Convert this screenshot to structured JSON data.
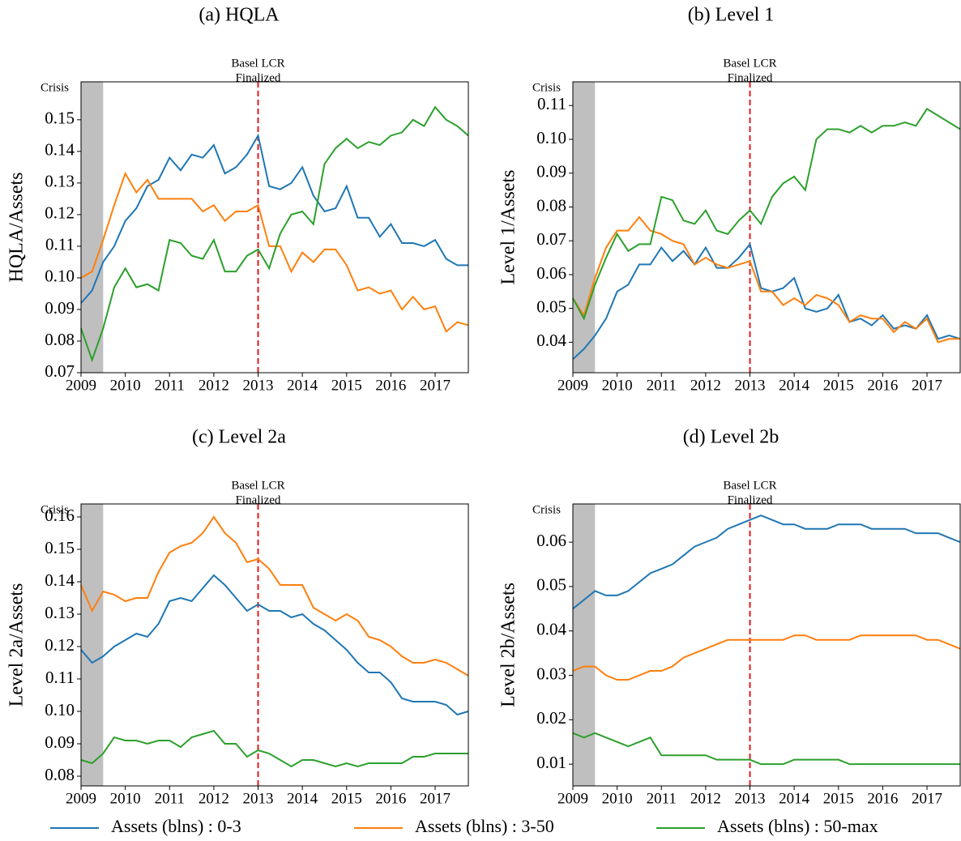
{
  "chart_data": [
    {
      "type": "line",
      "title": "(a) HQLA",
      "ylabel": "HQLA/Assets",
      "x": [
        2009,
        2009.25,
        2009.5,
        2009.75,
        2010,
        2010.25,
        2010.5,
        2010.75,
        2011,
        2011.25,
        2011.5,
        2011.75,
        2012,
        2012.25,
        2012.5,
        2012.75,
        2013,
        2013.25,
        2013.5,
        2013.75,
        2014,
        2014.25,
        2014.5,
        2014.75,
        2015,
        2015.25,
        2015.5,
        2015.75,
        2016,
        2016.25,
        2016.5,
        2016.75,
        2017,
        2017.25,
        2017.5,
        2017.75
      ],
      "xlim": [
        2009,
        2017.75
      ],
      "xticks": [
        2009,
        2010,
        2011,
        2012,
        2013,
        2014,
        2015,
        2016,
        2017
      ],
      "ylim": [
        0.07,
        0.162
      ],
      "yticks": [
        0.07,
        0.08,
        0.09,
        {
          "value": 0.1,
          "label": "0.10"
        },
        0.11,
        0.12,
        0.13,
        0.14,
        0.15
      ],
      "crisis_label": "Crisis",
      "crisis_span": [
        2009,
        2009.5
      ],
      "event_label": [
        "Basel LCR",
        "Finalized"
      ],
      "event_x": 2013,
      "series": [
        {
          "name": "Assets (blns) : 0-3",
          "color": "#1f77b4",
          "values": [
            0.092,
            0.096,
            0.105,
            0.11,
            0.118,
            0.122,
            0.129,
            0.131,
            0.138,
            0.134,
            0.139,
            0.138,
            0.142,
            0.133,
            0.135,
            0.139,
            0.145,
            0.129,
            0.128,
            0.13,
            0.135,
            0.126,
            0.121,
            0.122,
            0.129,
            0.119,
            0.119,
            0.113,
            0.117,
            0.111,
            0.111,
            0.11,
            0.112,
            0.106,
            0.104,
            0.104
          ]
        },
        {
          "name": "Assets (blns) : 3-50",
          "color": "#ff7f0e",
          "values": [
            0.1,
            0.102,
            0.112,
            0.123,
            0.133,
            0.127,
            0.131,
            0.125,
            0.125,
            0.125,
            0.125,
            0.121,
            0.123,
            0.118,
            0.121,
            0.121,
            0.123,
            0.11,
            0.11,
            0.102,
            0.108,
            0.105,
            0.109,
            0.109,
            0.104,
            0.096,
            0.097,
            0.095,
            0.096,
            0.09,
            0.094,
            0.09,
            0.091,
            0.083,
            0.086,
            0.085
          ]
        },
        {
          "name": "Assets (blns) : 50-max",
          "color": "#2ca02c",
          "values": [
            0.084,
            0.074,
            0.084,
            0.097,
            0.103,
            0.097,
            0.098,
            0.096,
            0.112,
            0.111,
            0.107,
            0.106,
            0.112,
            0.102,
            0.102,
            0.107,
            0.109,
            0.103,
            0.114,
            0.12,
            0.121,
            0.117,
            0.136,
            0.141,
            0.144,
            0.141,
            0.143,
            0.142,
            0.145,
            0.146,
            0.15,
            0.148,
            0.154,
            0.15,
            0.148,
            0.145
          ]
        }
      ]
    },
    {
      "type": "line",
      "title": "(b) Level 1",
      "ylabel": "Level 1/Assets",
      "x": [
        2009,
        2009.25,
        2009.5,
        2009.75,
        2010,
        2010.25,
        2010.5,
        2010.75,
        2011,
        2011.25,
        2011.5,
        2011.75,
        2012,
        2012.25,
        2012.5,
        2012.75,
        2013,
        2013.25,
        2013.5,
        2013.75,
        2014,
        2014.25,
        2014.5,
        2014.75,
        2015,
        2015.25,
        2015.5,
        2015.75,
        2016,
        2016.25,
        2016.5,
        2016.75,
        2017,
        2017.25,
        2017.5,
        2017.75
      ],
      "xlim": [
        2009,
        2017.75
      ],
      "xticks": [
        2009,
        2010,
        2011,
        2012,
        2013,
        2014,
        2015,
        2016,
        2017
      ],
      "ylim": [
        0.031,
        0.117
      ],
      "yticks": [
        0.04,
        0.05,
        0.06,
        0.07,
        0.08,
        0.09,
        {
          "value": 0.1,
          "label": "0.10"
        },
        0.11
      ],
      "crisis_label": "Crisis",
      "crisis_span": [
        2009,
        2009.5
      ],
      "event_label": [
        "Basel LCR",
        "Finalized"
      ],
      "event_x": 2013,
      "series": [
        {
          "name": "Assets (blns) : 0-3",
          "color": "#1f77b4",
          "values": [
            0.035,
            0.038,
            0.042,
            0.047,
            0.055,
            0.057,
            0.063,
            0.063,
            0.068,
            0.064,
            0.067,
            0.063,
            0.068,
            0.062,
            0.062,
            0.065,
            0.069,
            0.056,
            0.055,
            0.056,
            0.059,
            0.05,
            0.049,
            0.05,
            0.054,
            0.046,
            0.047,
            0.045,
            0.048,
            0.044,
            0.045,
            0.044,
            0.048,
            0.041,
            0.042,
            0.041
          ]
        },
        {
          "name": "Assets (blns) : 3-50",
          "color": "#ff7f0e",
          "values": [
            0.053,
            0.048,
            0.059,
            0.068,
            0.073,
            0.073,
            0.077,
            0.073,
            0.072,
            0.07,
            0.069,
            0.063,
            0.065,
            0.063,
            0.062,
            0.063,
            0.064,
            0.055,
            0.055,
            0.051,
            0.053,
            0.051,
            0.054,
            0.053,
            0.051,
            0.046,
            0.048,
            0.047,
            0.047,
            0.043,
            0.046,
            0.044,
            0.047,
            0.04,
            0.041,
            0.041
          ]
        },
        {
          "name": "Assets (blns) : 50-max",
          "color": "#2ca02c",
          "values": [
            0.053,
            0.047,
            0.057,
            0.065,
            0.072,
            0.067,
            0.069,
            0.069,
            0.083,
            0.082,
            0.076,
            0.075,
            0.079,
            0.073,
            0.072,
            0.076,
            0.079,
            0.075,
            0.083,
            0.087,
            0.089,
            0.085,
            0.1,
            0.103,
            0.103,
            0.102,
            0.104,
            0.102,
            0.104,
            0.104,
            0.105,
            0.104,
            0.109,
            0.107,
            0.105,
            0.103
          ]
        }
      ]
    },
    {
      "type": "line",
      "title": "(c) Level 2a",
      "ylabel": "Level 2a/Assets",
      "x": [
        2009,
        2009.25,
        2009.5,
        2009.75,
        2010,
        2010.25,
        2010.5,
        2010.75,
        2011,
        2011.25,
        2011.5,
        2011.75,
        2012,
        2012.25,
        2012.5,
        2012.75,
        2013,
        2013.25,
        2013.5,
        2013.75,
        2014,
        2014.25,
        2014.5,
        2014.75,
        2015,
        2015.25,
        2015.5,
        2015.75,
        2016,
        2016.25,
        2016.5,
        2016.75,
        2017,
        2017.25,
        2017.5,
        2017.75
      ],
      "xlim": [
        2009,
        2017.75
      ],
      "xticks": [
        2009,
        2010,
        2011,
        2012,
        2013,
        2014,
        2015,
        2016,
        2017
      ],
      "ylim": [
        0.077,
        0.164
      ],
      "yticks": [
        0.08,
        0.09,
        {
          "value": 0.1,
          "label": "0.10"
        },
        0.11,
        0.12,
        0.13,
        0.14,
        0.15,
        0.16
      ],
      "crisis_label": "Crisis",
      "crisis_span": [
        2009,
        2009.5
      ],
      "event_label": [
        "Basel LCR",
        "Finalized"
      ],
      "event_x": 2013,
      "series": [
        {
          "name": "Assets (blns) : 0-3",
          "color": "#1f77b4",
          "values": [
            0.119,
            0.115,
            0.117,
            0.12,
            0.122,
            0.124,
            0.123,
            0.127,
            0.134,
            0.135,
            0.134,
            0.138,
            0.142,
            0.139,
            0.135,
            0.131,
            0.133,
            0.131,
            0.131,
            0.129,
            0.13,
            0.127,
            0.125,
            0.122,
            0.119,
            0.115,
            0.112,
            0.112,
            0.109,
            0.104,
            0.103,
            0.103,
            0.103,
            0.102,
            0.099,
            0.1
          ]
        },
        {
          "name": "Assets (blns) : 3-50",
          "color": "#ff7f0e",
          "values": [
            0.139,
            0.131,
            0.137,
            0.136,
            0.134,
            0.135,
            0.135,
            0.143,
            0.149,
            0.151,
            0.152,
            0.155,
            0.16,
            0.155,
            0.152,
            0.146,
            0.147,
            0.144,
            0.139,
            0.139,
            0.139,
            0.132,
            0.13,
            0.128,
            0.13,
            0.128,
            0.123,
            0.122,
            0.12,
            0.117,
            0.115,
            0.115,
            0.116,
            0.115,
            0.113,
            0.111
          ]
        },
        {
          "name": "Assets (blns) : 50-max",
          "color": "#2ca02c",
          "values": [
            0.085,
            0.084,
            0.087,
            0.092,
            0.091,
            0.091,
            0.09,
            0.091,
            0.091,
            0.089,
            0.092,
            0.093,
            0.094,
            0.09,
            0.09,
            0.086,
            0.088,
            0.087,
            0.085,
            0.083,
            0.085,
            0.085,
            0.084,
            0.083,
            0.084,
            0.083,
            0.084,
            0.084,
            0.084,
            0.084,
            0.086,
            0.086,
            0.087,
            0.087,
            0.087,
            0.087
          ]
        }
      ]
    },
    {
      "type": "line",
      "title": "(d) Level 2b",
      "ylabel": "Level 2b/Assets",
      "x": [
        2009,
        2009.25,
        2009.5,
        2009.75,
        2010,
        2010.25,
        2010.5,
        2010.75,
        2011,
        2011.25,
        2011.5,
        2011.75,
        2012,
        2012.25,
        2012.5,
        2012.75,
        2013,
        2013.25,
        2013.5,
        2013.75,
        2014,
        2014.25,
        2014.5,
        2014.75,
        2015,
        2015.25,
        2015.5,
        2015.75,
        2016,
        2016.25,
        2016.5,
        2016.75,
        2017,
        2017.25,
        2017.5,
        2017.75
      ],
      "xlim": [
        2009,
        2017.75
      ],
      "xticks": [
        2009,
        2010,
        2011,
        2012,
        2013,
        2014,
        2015,
        2016,
        2017
      ],
      "ylim": [
        0.0051,
        0.0686
      ],
      "yticks": [
        0.01,
        0.02,
        0.03,
        0.04,
        0.05,
        0.06
      ],
      "crisis_label": "Crisis",
      "crisis_span": [
        2009,
        2009.5
      ],
      "event_label": [
        "Basel LCR",
        "Finalized"
      ],
      "event_x": 2013,
      "series": [
        {
          "name": "Assets (blns) : 0-3",
          "color": "#1f77b4",
          "values": [
            0.045,
            0.047,
            0.049,
            0.048,
            0.048,
            0.049,
            0.051,
            0.053,
            0.054,
            0.055,
            0.057,
            0.059,
            0.06,
            0.061,
            0.063,
            0.064,
            0.065,
            0.066,
            0.065,
            0.064,
            0.064,
            0.063,
            0.063,
            0.063,
            0.064,
            0.064,
            0.064,
            0.063,
            0.063,
            0.063,
            0.063,
            0.062,
            0.062,
            0.062,
            0.061,
            0.06
          ]
        },
        {
          "name": "Assets (blns) : 3-50",
          "color": "#ff7f0e",
          "values": [
            0.031,
            0.032,
            0.032,
            0.03,
            0.029,
            0.029,
            0.03,
            0.031,
            0.031,
            0.032,
            0.034,
            0.035,
            0.036,
            0.037,
            0.038,
            0.038,
            0.038,
            0.038,
            0.038,
            0.038,
            0.039,
            0.039,
            0.038,
            0.038,
            0.038,
            0.038,
            0.039,
            0.039,
            0.039,
            0.039,
            0.039,
            0.039,
            0.038,
            0.038,
            0.037,
            0.036
          ]
        },
        {
          "name": "Assets (blns) : 50-max",
          "color": "#2ca02c",
          "values": [
            0.017,
            0.016,
            0.017,
            0.016,
            0.015,
            0.014,
            0.015,
            0.016,
            0.012,
            0.012,
            0.012,
            0.012,
            0.012,
            0.011,
            0.011,
            0.011,
            0.011,
            0.01,
            0.01,
            0.01,
            0.011,
            0.011,
            0.011,
            0.011,
            0.011,
            0.01,
            0.01,
            0.01,
            0.01,
            0.01,
            0.01,
            0.01,
            0.01,
            0.01,
            0.01,
            0.01
          ]
        }
      ]
    }
  ]
}
